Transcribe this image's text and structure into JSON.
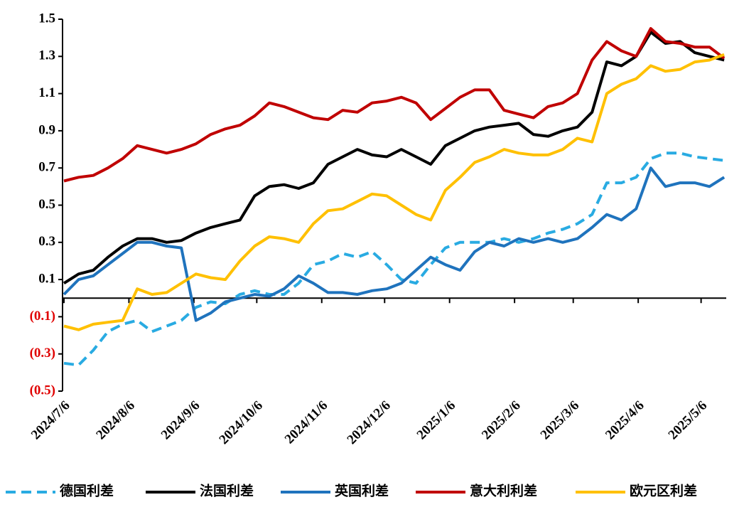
{
  "chart_data": {
    "type": "line",
    "x": [
      "2024/7/6",
      "2024/7/13",
      "2024/7/20",
      "2024/7/27",
      "2024/8/3",
      "2024/8/10",
      "2024/8/17",
      "2024/8/24",
      "2024/8/31",
      "2024/9/7",
      "2024/9/14",
      "2024/9/21",
      "2024/9/28",
      "2024/10/5",
      "2024/10/12",
      "2024/10/19",
      "2024/10/26",
      "2024/11/2",
      "2024/11/9",
      "2024/11/16",
      "2024/11/23",
      "2024/11/30",
      "2024/12/7",
      "2024/12/14",
      "2024/12/21",
      "2024/12/28",
      "2025/1/4",
      "2025/1/11",
      "2025/1/18",
      "2025/1/25",
      "2025/2/1",
      "2025/2/8",
      "2025/2/15",
      "2025/2/22",
      "2025/3/1",
      "2025/3/8",
      "2025/3/15",
      "2025/3/22",
      "2025/3/29",
      "2025/4/5",
      "2025/4/12",
      "2025/4/19",
      "2025/4/26",
      "2025/5/3",
      "2025/5/10",
      "2025/5/17"
    ],
    "xlim": [
      "2024/7/6",
      "2025/5/18"
    ],
    "xticks": [
      "2024/7/6",
      "2024/8/6",
      "2024/9/6",
      "2024/10/6",
      "2024/11/6",
      "2024/12/6",
      "2025/1/6",
      "2025/2/6",
      "2025/3/6",
      "2025/4/6",
      "2025/5/6"
    ],
    "ylim": [
      -0.5,
      1.5
    ],
    "yticks": [
      {
        "value": -0.5,
        "label": "(0.5)"
      },
      {
        "value": -0.3,
        "label": "(0.3)"
      },
      {
        "value": -0.1,
        "label": "(0.1)"
      },
      0.1,
      0.3,
      0.5,
      0.7,
      0.9,
      1.1,
      1.3,
      1.5
    ],
    "negative_label_color": "#e00000",
    "grid": false,
    "legend": "bottom",
    "series": [
      {
        "name": "德国利差",
        "color": "#29abe2",
        "dash": true,
        "values": [
          -0.35,
          -0.36,
          -0.28,
          -0.18,
          -0.14,
          -0.12,
          -0.18,
          -0.15,
          -0.12,
          -0.05,
          -0.02,
          -0.03,
          0.02,
          0.04,
          0.02,
          0.02,
          0.08,
          0.18,
          0.2,
          0.24,
          0.22,
          0.25,
          0.18,
          0.1,
          0.08,
          0.18,
          0.27,
          0.3,
          0.3,
          0.3,
          0.32,
          0.3,
          0.32,
          0.35,
          0.37,
          0.4,
          0.45,
          0.62,
          0.62,
          0.65,
          0.75,
          0.78,
          0.78,
          0.76,
          0.75,
          0.74
        ]
      },
      {
        "name": "法国利差",
        "color": "#000000",
        "values": [
          0.08,
          0.13,
          0.15,
          0.22,
          0.28,
          0.32,
          0.32,
          0.3,
          0.31,
          0.35,
          0.38,
          0.4,
          0.42,
          0.55,
          0.6,
          0.61,
          0.59,
          0.62,
          0.72,
          0.76,
          0.8,
          0.77,
          0.76,
          0.8,
          0.76,
          0.72,
          0.82,
          0.86,
          0.9,
          0.92,
          0.93,
          0.94,
          0.88,
          0.87,
          0.9,
          0.92,
          1.0,
          1.27,
          1.25,
          1.3,
          1.43,
          1.37,
          1.38,
          1.32,
          1.3,
          1.28
        ]
      },
      {
        "name": "英国利差",
        "color": "#1f73bd",
        "values": [
          0.02,
          0.1,
          0.12,
          0.18,
          0.24,
          0.3,
          0.3,
          0.28,
          0.27,
          -0.12,
          -0.08,
          -0.02,
          0.0,
          0.02,
          0.01,
          0.05,
          0.12,
          0.08,
          0.03,
          0.03,
          0.02,
          0.04,
          0.05,
          0.08,
          0.15,
          0.22,
          0.18,
          0.15,
          0.25,
          0.3,
          0.28,
          0.32,
          0.3,
          0.32,
          0.3,
          0.32,
          0.38,
          0.45,
          0.42,
          0.48,
          0.7,
          0.6,
          0.62,
          0.62,
          0.6,
          0.65
        ]
      },
      {
        "name": "意大利利差",
        "color": "#c00000",
        "values": [
          0.63,
          0.65,
          0.66,
          0.7,
          0.75,
          0.82,
          0.8,
          0.78,
          0.8,
          0.83,
          0.88,
          0.91,
          0.93,
          0.98,
          1.05,
          1.03,
          1.0,
          0.97,
          0.96,
          1.01,
          1.0,
          1.05,
          1.06,
          1.08,
          1.05,
          0.96,
          1.02,
          1.08,
          1.12,
          1.12,
          1.01,
          0.99,
          0.97,
          1.03,
          1.05,
          1.1,
          1.28,
          1.38,
          1.33,
          1.3,
          1.45,
          1.38,
          1.37,
          1.35,
          1.35,
          1.29
        ]
      },
      {
        "name": "欧元区利差",
        "color": "#ffc000",
        "values": [
          -0.15,
          -0.17,
          -0.14,
          -0.13,
          -0.12,
          0.05,
          0.02,
          0.03,
          0.08,
          0.13,
          0.11,
          0.1,
          0.2,
          0.28,
          0.33,
          0.32,
          0.3,
          0.4,
          0.47,
          0.48,
          0.52,
          0.56,
          0.55,
          0.5,
          0.45,
          0.42,
          0.58,
          0.65,
          0.73,
          0.76,
          0.8,
          0.78,
          0.77,
          0.77,
          0.8,
          0.86,
          0.84,
          1.1,
          1.15,
          1.18,
          1.25,
          1.22,
          1.23,
          1.27,
          1.28,
          1.31
        ]
      }
    ]
  }
}
